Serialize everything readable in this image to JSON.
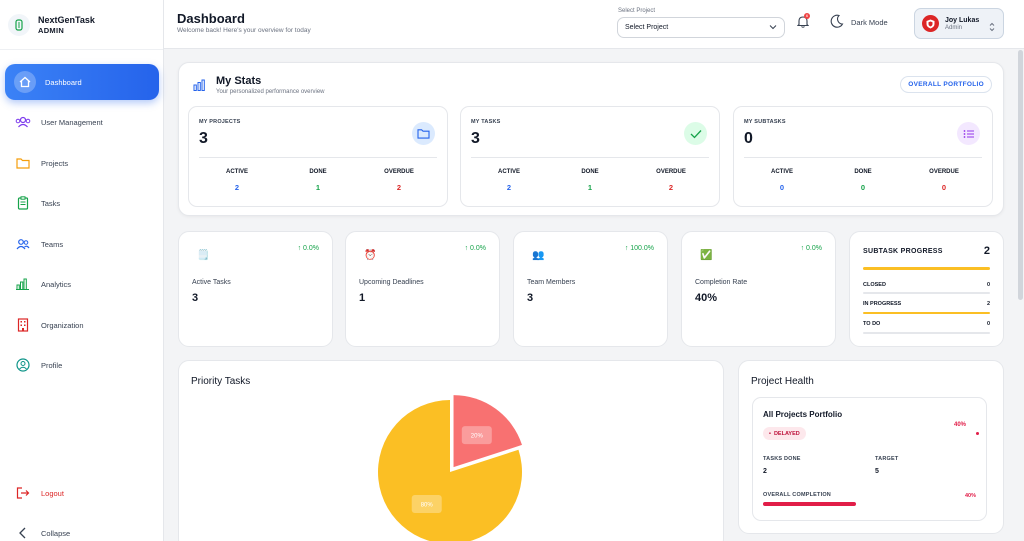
{
  "brand": {
    "name": "NextGenTask",
    "role": "ADMIN"
  },
  "nav": {
    "dashboard": "Dashboard",
    "users": "User Management",
    "projects": "Projects",
    "tasks": "Tasks",
    "teams": "Teams",
    "analytics": "Analytics",
    "organization": "Organization",
    "profile": "Profile",
    "logout": "Logout",
    "collapse": "Collapse"
  },
  "header": {
    "title": "Dashboard",
    "subtitle": "Welcome back! Here's your overview for today",
    "project_label": "Select Project",
    "project_value": "Select Project",
    "notification_count": "6",
    "dark_mode": "Dark Mode",
    "user_name": "Joy Lukas",
    "user_role": "Admin"
  },
  "my_stats": {
    "title": "My Stats",
    "subtitle": "Your personalized performance overview",
    "portfolio_button": "OVERALL PORTFOLIO",
    "cards": [
      {
        "label": "MY PROJECTS",
        "value": "3",
        "active": "2",
        "done": "1",
        "overdue": "2",
        "icon": "folder-icon"
      },
      {
        "label": "MY TASKS",
        "value": "3",
        "active": "2",
        "done": "1",
        "overdue": "2",
        "icon": "check-icon"
      },
      {
        "label": "MY SUBTASKS",
        "value": "0",
        "active": "0",
        "done": "0",
        "overdue": "0",
        "icon": "list-icon"
      }
    ],
    "col_active": "ACTIVE",
    "col_done": "DONE",
    "col_overdue": "OVERDUE"
  },
  "metrics": [
    {
      "label": "Active Tasks",
      "value": "3",
      "change": "↑ 0.0%",
      "icon": "🗒️"
    },
    {
      "label": "Upcoming Deadlines",
      "value": "1",
      "change": "↑ 0.0%",
      "icon": "⏰"
    },
    {
      "label": "Team Members",
      "value": "3",
      "change": "↑ 100.0%",
      "icon": "👥"
    },
    {
      "label": "Completion Rate",
      "value": "40%",
      "change": "↑ 0.0%",
      "icon": "✅"
    }
  ],
  "subtask_progress": {
    "title": "SUBTASK PROGRESS",
    "total": "2",
    "progress": 1.0,
    "rows": [
      {
        "label": "CLOSED",
        "value": "0",
        "fill": 0
      },
      {
        "label": "IN PROGRESS",
        "value": "2",
        "fill": 1.0
      },
      {
        "label": "TO DO",
        "value": "0",
        "fill": 0
      }
    ]
  },
  "priority_tasks": {
    "title": "Priority Tasks",
    "slices": [
      {
        "label": "80%",
        "value": 80,
        "color": "#fbbf24"
      },
      {
        "label": "20%",
        "value": 20,
        "color": "#f87171"
      }
    ]
  },
  "project_health": {
    "title": "Project Health",
    "portfolio_name": "All Projects Portfolio",
    "status": "DELAYED",
    "tasks_done_label": "TASKS DONE",
    "tasks_done_value": "2",
    "target_label": "TARGET",
    "target_value": "5",
    "completion_label": "OVERALL COMPLETION",
    "completion_pct": "40%",
    "ring_pct": "40%",
    "completion_fraction": 0.4
  }
}
